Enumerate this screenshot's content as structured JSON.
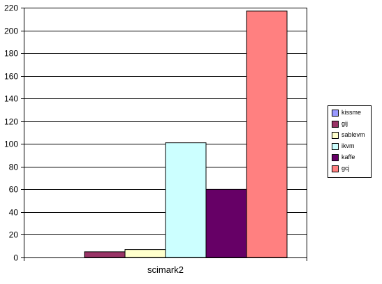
{
  "chart_data": {
    "type": "bar",
    "categories": [
      "scimark2"
    ],
    "series": [
      {
        "name": "kissme",
        "values": [
          0
        ],
        "color": "#9999ff"
      },
      {
        "name": "gij",
        "values": [
          5
        ],
        "color": "#993366"
      },
      {
        "name": "sablevm",
        "values": [
          7
        ],
        "color": "#ffffcc"
      },
      {
        "name": "ikvm",
        "values": [
          101
        ],
        "color": "#ccffff"
      },
      {
        "name": "kaffe",
        "values": [
          60
        ],
        "color": "#660066"
      },
      {
        "name": "gcj",
        "values": [
          217
        ],
        "color": "#ff8080"
      }
    ],
    "yticks": [
      "0",
      "20",
      "40",
      "60",
      "80",
      "100",
      "120",
      "140",
      "160",
      "180",
      "200",
      "220"
    ],
    "ylim": [
      0,
      220
    ],
    "grid": true,
    "legend_position": "right"
  }
}
